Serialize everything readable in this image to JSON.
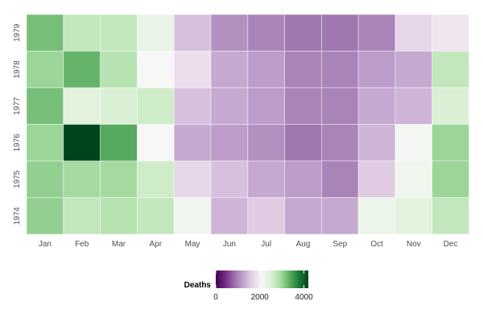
{
  "chart_data": {
    "type": "heatmap",
    "title": "",
    "xlabel": "",
    "ylabel": "",
    "x_categories": [
      "Jan",
      "Feb",
      "Mar",
      "Apr",
      "May",
      "Jun",
      "Jul",
      "Aug",
      "Sep",
      "Oct",
      "Nov",
      "Dec"
    ],
    "y_categories": [
      "1979",
      "1978",
      "1977",
      "1976",
      "1975",
      "1974"
    ],
    "values": [
      [
        3200,
        2700,
        2700,
        2300,
        1500,
        1100,
        1000,
        900,
        900,
        1000,
        1700,
        1900
      ],
      [
        3000,
        3300,
        2800,
        2100,
        1800,
        1300,
        1200,
        1000,
        1000,
        1200,
        1300,
        2700
      ],
      [
        3200,
        2400,
        2500,
        2600,
        1500,
        1300,
        1200,
        1000,
        1000,
        1300,
        1400,
        2500
      ],
      [
        3000,
        4200,
        3400,
        2100,
        1300,
        1200,
        1100,
        900,
        1000,
        1400,
        2150,
        3000
      ],
      [
        3050,
        2950,
        2950,
        2600,
        1700,
        1500,
        1300,
        1200,
        1000,
        1600,
        2200,
        3000
      ],
      [
        3050,
        2700,
        2800,
        2700,
        2200,
        1400,
        1600,
        1300,
        1300,
        2250,
        2400,
        2700
      ]
    ],
    "color_scale": {
      "name": "Deaths",
      "min": 0,
      "max": 4200,
      "midpoint": 2100,
      "ticks": [
        0,
        2000,
        4000
      ],
      "colors": [
        "#40004b",
        "#762a83",
        "#9970ab",
        "#c2a5cf",
        "#e7d4e8",
        "#f7f7f7",
        "#d9f0d3",
        "#a6dba0",
        "#5aae61",
        "#1b7837",
        "#00441b"
      ]
    },
    "legend_position": "bottom",
    "grid": false
  }
}
